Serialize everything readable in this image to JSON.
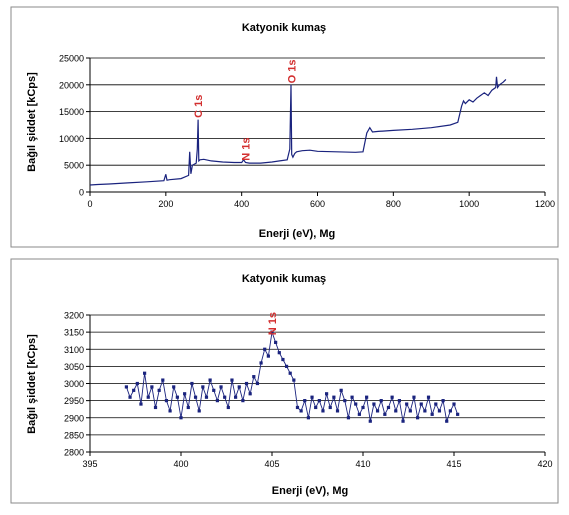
{
  "chart_data": [
    {
      "type": "line",
      "title": "Katyonik kumaş",
      "xlabel": "Enerji (eV), Mg",
      "ylabel": "Bağıl şiddet [kCps]",
      "xlim": [
        0,
        1200
      ],
      "ylim": [
        0,
        25000
      ],
      "xticks": [
        "0",
        "200",
        "400",
        "600",
        "800",
        "1000",
        "1200"
      ],
      "yticks": [
        "0",
        "5000",
        "10000",
        "15000",
        "20000",
        "25000"
      ],
      "grid": "horizontal",
      "color": "#1a237e",
      "annotations": [
        {
          "text": "C 1s",
          "x": 285,
          "y": 16000,
          "color": "#d32f2f"
        },
        {
          "text": "N 1s",
          "x": 410,
          "y": 8000,
          "color": "#d32f2f"
        },
        {
          "text": "O 1s",
          "x": 532,
          "y": 22500,
          "color": "#d32f2f"
        }
      ],
      "series": [
        {
          "x": [
            0,
            20,
            50,
            100,
            150,
            195,
            200,
            203,
            210,
            240,
            260,
            263,
            266,
            270,
            280,
            283,
            285,
            287,
            290,
            300,
            320,
            350,
            380,
            400,
            405,
            410,
            420,
            450,
            480,
            500,
            520,
            527,
            530,
            532,
            535,
            540,
            545,
            560,
            580,
            600,
            650,
            700,
            720,
            730,
            738,
            745,
            760,
            800,
            850,
            900,
            950,
            970,
            980,
            985,
            990,
            1000,
            1010,
            1020,
            1030,
            1040,
            1050,
            1060,
            1070,
            1072,
            1075,
            1080,
            1090,
            1097
          ],
          "values": [
            1300,
            1400,
            1500,
            1700,
            1900,
            2100,
            3300,
            2200,
            2300,
            2500,
            3100,
            7500,
            3400,
            5000,
            5400,
            8000,
            13500,
            5800,
            6000,
            6100,
            5800,
            5600,
            5500,
            5500,
            6000,
            5500,
            5400,
            5400,
            5600,
            5800,
            6000,
            8000,
            20000,
            7000,
            6500,
            7200,
            7500,
            7700,
            7800,
            7600,
            7500,
            7400,
            7500,
            11000,
            12000,
            11200,
            11300,
            11500,
            11700,
            12000,
            12500,
            13000,
            16000,
            17000,
            16500,
            17200,
            16800,
            17500,
            18000,
            18500,
            18000,
            19000,
            19500,
            21500,
            19500,
            20000,
            20500,
            21000
          ]
        }
      ]
    },
    {
      "type": "line",
      "title": "Katyonik kumaş",
      "xlabel": "Enerji (eV), Mg",
      "ylabel": "Bağıl şiddet [kCps]",
      "xlim": [
        395,
        420
      ],
      "ylim": [
        2800,
        3200
      ],
      "xticks": [
        "395",
        "400",
        "405",
        "410",
        "415",
        "420"
      ],
      "yticks": [
        "2800",
        "2850",
        "2900",
        "2950",
        "3000",
        "3050",
        "3100",
        "3150",
        "3200"
      ],
      "grid": "horizontal",
      "color": "#1a237e",
      "markers": true,
      "annotations": [
        {
          "text": "N 1s",
          "x": 405,
          "y": 3175,
          "color": "#d32f2f"
        }
      ],
      "series": [
        {
          "x": [
            397.0,
            397.2,
            397.4,
            397.6,
            397.8,
            398.0,
            398.2,
            398.4,
            398.6,
            398.8,
            399.0,
            399.2,
            399.4,
            399.6,
            399.8,
            400.0,
            400.2,
            400.4,
            400.6,
            400.8,
            401.0,
            401.2,
            401.4,
            401.6,
            401.8,
            402.0,
            402.2,
            402.4,
            402.6,
            402.8,
            403.0,
            403.2,
            403.4,
            403.6,
            403.8,
            404.0,
            404.2,
            404.4,
            404.6,
            404.8,
            405.0,
            405.2,
            405.4,
            405.6,
            405.8,
            406.0,
            406.2,
            406.4,
            406.6,
            406.8,
            407.0,
            407.2,
            407.4,
            407.6,
            407.8,
            408.0,
            408.2,
            408.4,
            408.6,
            408.8,
            409.0,
            409.2,
            409.4,
            409.6,
            409.8,
            410.0,
            410.2,
            410.4,
            410.6,
            410.8,
            411.0,
            411.2,
            411.4,
            411.6,
            411.8,
            412.0,
            412.2,
            412.4,
            412.6,
            412.8,
            413.0,
            413.2,
            413.4,
            413.6,
            413.8,
            414.0,
            414.2,
            414.4,
            414.6,
            414.8,
            415.0,
            415.2
          ],
          "values": [
            2990,
            2960,
            2980,
            3000,
            2940,
            3030,
            2960,
            2990,
            2930,
            2980,
            3010,
            2950,
            2920,
            2990,
            2960,
            2900,
            2970,
            2930,
            3000,
            2960,
            2920,
            2990,
            2960,
            3010,
            2980,
            2950,
            2990,
            2960,
            2930,
            3010,
            2960,
            2990,
            2950,
            3000,
            2970,
            3020,
            3000,
            3060,
            3100,
            3080,
            3150,
            3120,
            3090,
            3070,
            3050,
            3030,
            3010,
            2930,
            2920,
            2950,
            2900,
            2960,
            2930,
            2950,
            2920,
            2970,
            2930,
            2960,
            2920,
            2980,
            2950,
            2900,
            2960,
            2940,
            2910,
            2930,
            2960,
            2890,
            2940,
            2920,
            2950,
            2910,
            2930,
            2960,
            2920,
            2950,
            2890,
            2940,
            2920,
            2960,
            2900,
            2940,
            2920,
            2960,
            2910,
            2940,
            2920,
            2950,
            2890,
            2920,
            2940,
            2910
          ]
        }
      ]
    }
  ]
}
